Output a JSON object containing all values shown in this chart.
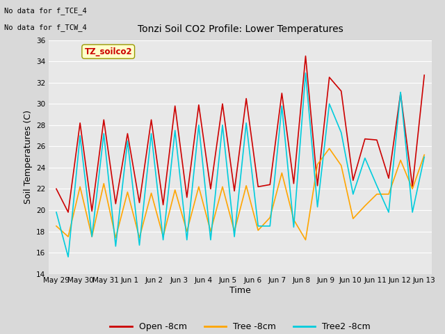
{
  "title": "Tonzi Soil CO2 Profile: Lower Temperatures",
  "xlabel": "Time",
  "ylabel": "Soil Temperatures (C)",
  "ylim": [
    14,
    36
  ],
  "yticks": [
    14,
    16,
    18,
    20,
    22,
    24,
    26,
    28,
    30,
    32,
    34,
    36
  ],
  "annotation_lines": [
    "No data for f_TCE_4",
    "No data for f_TCW_4"
  ],
  "box_label": "TZ_soilco2",
  "xtick_labels": [
    "May 29",
    "May 30",
    "May 31",
    "Jun 1",
    "Jun 2",
    "Jun 3",
    "Jun 4",
    "Jun 5",
    "Jun 6",
    "Jun 7",
    "Jun 8",
    "Jun 9",
    "Jun 10",
    "Jun 11",
    "Jun 12",
    "Jun 13"
  ],
  "legend_labels": [
    "Open -8cm",
    "Tree -8cm",
    "Tree2 -8cm"
  ],
  "line_colors": [
    "#cc0000",
    "#ffa500",
    "#00ccdd"
  ],
  "fig_facecolor": "#d9d9d9",
  "ax_facecolor": "#e8e8e8",
  "open_8cm": [
    22.0,
    19.8,
    28.2,
    19.9,
    28.5,
    20.6,
    27.2,
    20.7,
    28.5,
    20.5,
    29.8,
    21.2,
    29.9,
    22.0,
    30.0,
    21.8,
    30.5,
    22.2,
    22.4,
    31.0,
    22.5,
    34.5,
    22.3,
    32.5,
    31.2,
    22.8,
    26.7,
    26.6,
    23.0,
    31.0,
    22.2,
    32.7
  ],
  "tree_8cm": [
    18.5,
    17.5,
    22.2,
    17.5,
    22.5,
    17.4,
    21.7,
    17.4,
    21.6,
    17.5,
    21.9,
    18.0,
    22.2,
    18.0,
    22.2,
    18.0,
    22.3,
    18.1,
    19.3,
    23.5,
    19.1,
    17.2,
    24.3,
    25.8,
    24.2,
    19.2,
    20.4,
    21.5,
    21.5,
    24.7,
    22.0,
    25.2
  ],
  "tree2_8cm": [
    19.8,
    15.6,
    27.0,
    17.5,
    27.2,
    16.6,
    26.5,
    16.7,
    27.2,
    17.2,
    27.5,
    17.2,
    28.0,
    17.2,
    28.0,
    17.5,
    28.2,
    18.5,
    18.5,
    29.8,
    18.4,
    32.9,
    20.3,
    30.0,
    27.3,
    21.5,
    24.9,
    22.3,
    19.8,
    31.1,
    19.8,
    25.0
  ],
  "n_days": 16,
  "n_points": 32,
  "figsize": [
    6.4,
    4.8
  ],
  "dpi": 100
}
